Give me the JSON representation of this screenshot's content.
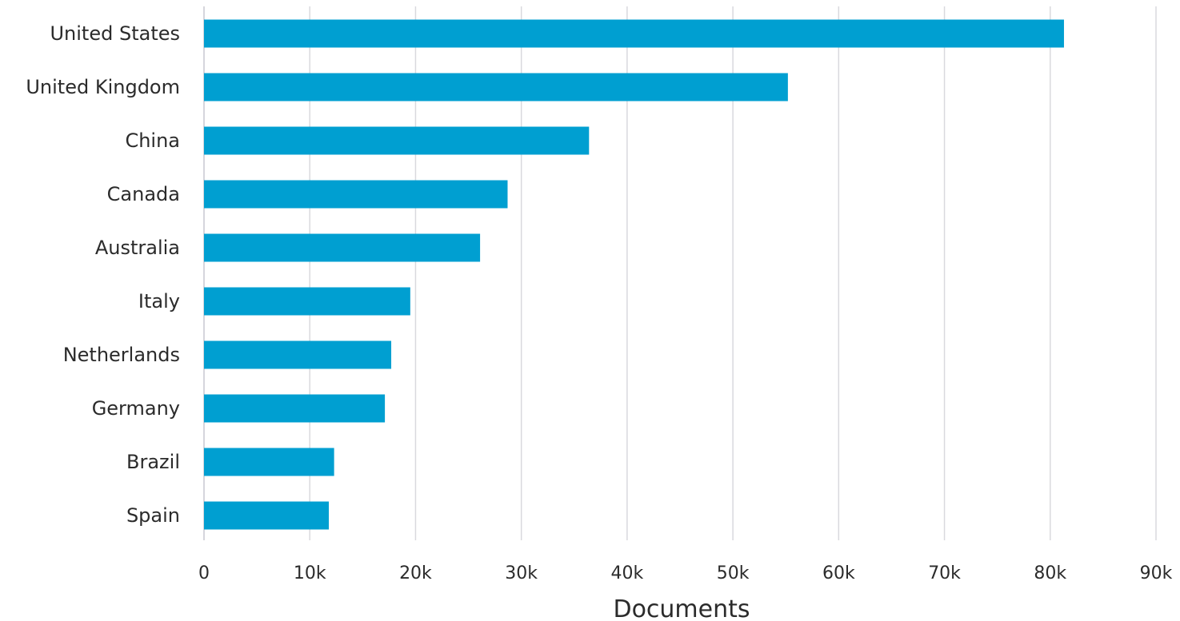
{
  "chart_data": {
    "type": "bar",
    "orientation": "horizontal",
    "categories": [
      "United States",
      "United Kingdom",
      "China",
      "Canada",
      "Australia",
      "Italy",
      "Netherlands",
      "Germany",
      "Brazil",
      "Spain"
    ],
    "values": [
      81300,
      55200,
      36400,
      28700,
      26100,
      19500,
      17700,
      17100,
      12300,
      11800
    ],
    "xlabel": "Documents",
    "ylabel": "",
    "xlim": [
      0,
      90000
    ],
    "x_ticks": [
      "0",
      "10k",
      "20k",
      "30k",
      "40k",
      "50k",
      "60k",
      "70k",
      "80k",
      "90k"
    ],
    "grid": "vertical",
    "bar_color": "#009fd1",
    "grid_color": "#d9d9de"
  }
}
